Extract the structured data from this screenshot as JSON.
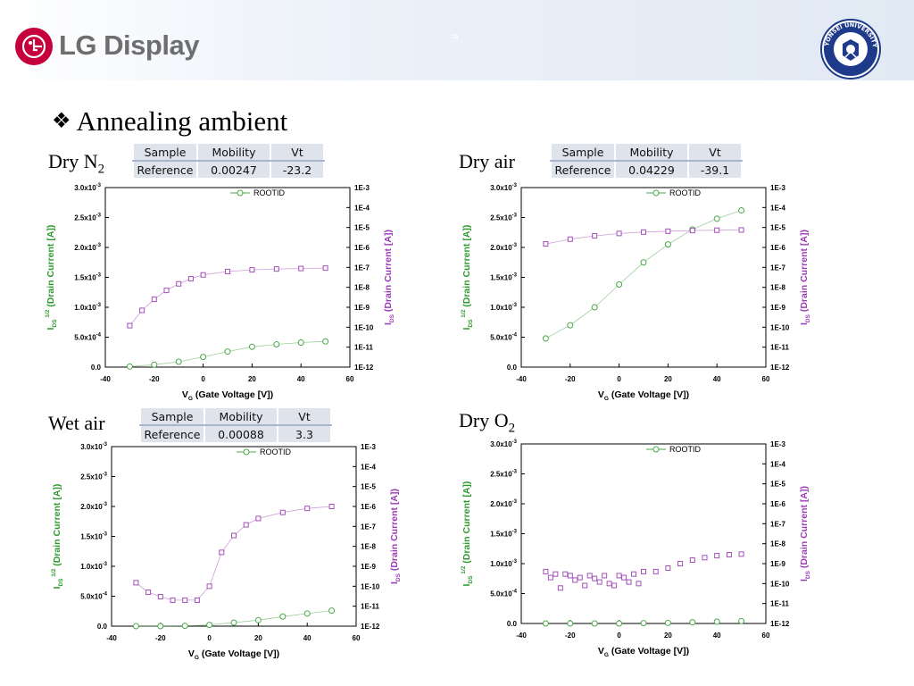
{
  "header": {
    "logo_text": "LG Display",
    "mark": "ㅋ",
    "seal_text": "YONSEI UNIVERSITY",
    "colors": {
      "lg_red": "#c5003c",
      "logo_gray": "#6e6e6e",
      "seal_blue": "#1e3a8a"
    }
  },
  "slide": {
    "bullet": "❖",
    "title": "Annealing ambient"
  },
  "panels": [
    {
      "label": "Dry N",
      "sub": "2",
      "table": {
        "headers": [
          "Sample",
          "Mobility",
          "Vt"
        ],
        "row": [
          "Reference",
          "0.00247",
          "-23.2"
        ]
      }
    },
    {
      "label": "Dry air",
      "sub": "",
      "table": {
        "headers": [
          "Sample",
          "Mobility",
          "Vt"
        ],
        "row": [
          "Reference",
          "0.04229",
          "-39.1"
        ]
      }
    },
    {
      "label": "Wet air",
      "sub": "",
      "table": {
        "headers": [
          "Sample",
          "Mobility",
          "Vt"
        ],
        "row": [
          "Reference",
          "0.00088",
          "3.3"
        ]
      }
    },
    {
      "label": "Dry O",
      "sub": "2",
      "table": null
    }
  ],
  "chart_data": [
    {
      "type": "scatter",
      "x_label": "V_G (Gate Voltage [V])",
      "y_left_label": "I_DS^1/2 (Drain Current [A])",
      "y_right_label": "I_DS (Drain Current [A])",
      "xlim": [
        -40,
        60
      ],
      "x_ticks": [
        -40,
        -20,
        0,
        20,
        40,
        60
      ],
      "ylim_left": [
        0,
        0.003
      ],
      "y_left_ticks": [
        "3.0x10-3",
        "2.5x10-3",
        "2.0x10-3",
        "1.5x10-3",
        "1.0x10-3",
        "5.0x10-4",
        "0.0"
      ],
      "ylim_right_log10": [
        -12,
        -3
      ],
      "y_right_ticks": [
        "1E-3",
        "1E-4",
        "1E-5",
        "1E-6",
        "1E-7",
        "1E-8",
        "1E-9",
        "1E-10",
        "1E-11",
        "1E-12"
      ],
      "legend": "ROOTID",
      "series": [
        {
          "name": "ROOTID",
          "axis": "left",
          "marker": "circle",
          "color": "#4aa84a",
          "x": [
            -30,
            -20,
            -10,
            0,
            10,
            20,
            30,
            40,
            50
          ],
          "y": [
            1e-05,
            4e-05,
            9e-05,
            0.00017,
            0.00026,
            0.00034,
            0.00038,
            0.00041,
            0.00043
          ]
        },
        {
          "name": "",
          "axis": "right",
          "marker": "square",
          "color": "#a24fb8",
          "x": [
            -30,
            -25,
            -20,
            -15,
            -10,
            -5,
            0,
            10,
            20,
            30,
            40,
            50
          ],
          "y": [
            1.2e-10,
            7e-10,
            2.5e-09,
            7e-09,
            1.5e-08,
            2.7e-08,
            4.2e-08,
            6.2e-08,
            7.5e-08,
            8.3e-08,
            8.8e-08,
            9.2e-08
          ]
        }
      ]
    },
    {
      "type": "scatter",
      "x_label": "V_G (Gate Voltage [V])",
      "y_left_label": "I_DS^1/2 (Drain Current [A])",
      "y_right_label": "I_DS (Drain Current [A])",
      "xlim": [
        -40,
        60
      ],
      "x_ticks": [
        -40,
        -20,
        0,
        20,
        40,
        60
      ],
      "ylim_left": [
        0,
        0.003
      ],
      "y_left_ticks": [
        "3.0x10-3",
        "2.5x10-3",
        "2.0x10-3",
        "1.5x10-3",
        "1.0x10-3",
        "5.0x10-4",
        "0.0"
      ],
      "ylim_right_log10": [
        -12,
        -3
      ],
      "y_right_ticks": [
        "1E-3",
        "1E-4",
        "1E-5",
        "1E-6",
        "1E-7",
        "1E-8",
        "1E-9",
        "1E-10",
        "1E-11",
        "1E-12"
      ],
      "legend": "ROOTID",
      "series": [
        {
          "name": "ROOTID",
          "axis": "left",
          "marker": "circle",
          "color": "#4aa84a",
          "x": [
            -30,
            -20,
            -10,
            0,
            10,
            20,
            30,
            40,
            50
          ],
          "y": [
            0.00048,
            0.0007,
            0.001,
            0.00138,
            0.00175,
            0.00205,
            0.0023,
            0.00248,
            0.00262
          ]
        },
        {
          "name": "",
          "axis": "right",
          "marker": "square",
          "color": "#a24fb8",
          "x": [
            -30,
            -20,
            -10,
            0,
            10,
            20,
            30,
            40,
            50
          ],
          "y": [
            1.5e-06,
            2.6e-06,
            3.8e-06,
            5e-06,
            5.9e-06,
            6.5e-06,
            7e-06,
            7.3e-06,
            7.5e-06
          ]
        }
      ]
    },
    {
      "type": "scatter",
      "x_label": "V_G (Gate Voltage [V])",
      "y_left_label": "I_DS^1/2 (Drain Current [A])",
      "y_right_label": "I_DS (Drain Current [A])",
      "xlim": [
        -40,
        60
      ],
      "x_ticks": [
        -40,
        -20,
        0,
        20,
        40,
        60
      ],
      "ylim_left": [
        0,
        0.003
      ],
      "y_left_ticks": [
        "3.0x10-3",
        "2.5x10-3",
        "2.0x10-3",
        "1.5x10-3",
        "1.0x10-3",
        "5.0x10-4",
        "0.0"
      ],
      "ylim_right_log10": [
        -12,
        -3
      ],
      "y_right_ticks": [
        "1E-3",
        "1E-4",
        "1E-5",
        "1E-6",
        "1E-7",
        "1E-8",
        "1E-9",
        "1E-10",
        "1E-11",
        "1E-12"
      ],
      "legend": "ROOTID",
      "series": [
        {
          "name": "ROOTID",
          "axis": "left",
          "marker": "circle",
          "color": "#4aa84a",
          "x": [
            -30,
            -20,
            -10,
            0,
            10,
            20,
            30,
            40,
            50
          ],
          "y": [
            0,
            0,
            5e-06,
            2e-05,
            6e-05,
            0.0001,
            0.00016,
            0.00021,
            0.00026
          ]
        },
        {
          "name": "",
          "axis": "right",
          "marker": "square",
          "color": "#a24fb8",
          "x": [
            -30,
            -25,
            -20,
            -15,
            -10,
            -5,
            0,
            5,
            10,
            15,
            20,
            30,
            40,
            50
          ],
          "y": [
            1.5e-10,
            5e-11,
            3e-11,
            2e-11,
            2e-11,
            2e-11,
            1e-10,
            5e-09,
            3.5e-08,
            1.2e-07,
            2.5e-07,
            5e-07,
            8e-07,
            1e-06
          ]
        }
      ]
    },
    {
      "type": "scatter",
      "x_label": "V_G (Gate Voltage [V])",
      "y_left_label": "I_DS^1/2 (Drain Current [A])",
      "y_right_label": "I_DS (Drain Current [A])",
      "xlim": [
        -40,
        60
      ],
      "x_ticks": [
        -40,
        -20,
        0,
        20,
        40,
        60
      ],
      "ylim_left": [
        0,
        0.003
      ],
      "y_left_ticks": [
        "3.0x10-3",
        "2.5x10-3",
        "2.0x10-3",
        "1.5x10-3",
        "1.0x10-3",
        "5.0x10-4",
        "0.0"
      ],
      "ylim_right_log10": [
        -12,
        -3
      ],
      "y_right_ticks": [
        "1E-3",
        "1E-4",
        "1E-5",
        "1E-6",
        "1E-7",
        "1E-8",
        "1E-9",
        "1E-10",
        "1E-11",
        "1E-12"
      ],
      "legend": "ROOTID",
      "series": [
        {
          "name": "ROOTID",
          "axis": "left",
          "marker": "circle",
          "color": "#4aa84a",
          "x": [
            -30,
            -20,
            -10,
            0,
            10,
            20,
            30,
            40,
            50
          ],
          "y": [
            0,
            0,
            0,
            0,
            5e-06,
            1e-05,
            2e-05,
            3e-05,
            4e-05
          ]
        },
        {
          "name": "",
          "axis": "right",
          "marker": "square",
          "color": "#a24fb8",
          "x": [
            -30,
            -28,
            -26,
            -24,
            -22,
            -20,
            -18,
            -16,
            -14,
            -12,
            -10,
            -8,
            -6,
            -4,
            -2,
            0,
            2,
            4,
            6,
            8,
            10,
            15,
            20,
            25,
            30,
            35,
            40,
            45,
            50
          ],
          "y": [
            4e-10,
            2e-10,
            3e-10,
            6e-11,
            3e-10,
            2.5e-10,
            1.5e-10,
            2e-10,
            8e-11,
            2.5e-10,
            1.8e-10,
            1.2e-10,
            2.5e-10,
            1e-10,
            8e-11,
            2.5e-10,
            2e-10,
            1.2e-10,
            3e-10,
            1e-10,
            4e-10,
            4e-10,
            6e-10,
            1e-09,
            1.5e-09,
            2e-09,
            2.5e-09,
            2.8e-09,
            3e-09
          ]
        }
      ]
    }
  ]
}
